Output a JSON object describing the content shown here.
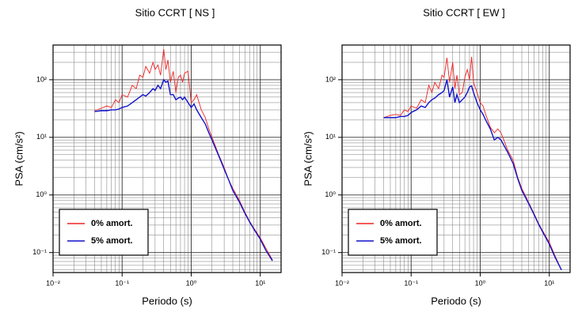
{
  "chart_data": [
    {
      "type": "line",
      "title": "Sitio CCRT [ NS ]",
      "xlabel": "Periodo (s)",
      "ylabel": "PSA (cm/s²)",
      "log_x": true,
      "log_y": true,
      "grid": true,
      "legend": "lower left",
      "xlim": [
        0.01,
        20
      ],
      "ylim": [
        0.045,
        400
      ],
      "xticks": [
        {
          "value": 0.01,
          "label": "10⁻²"
        },
        {
          "value": 0.1,
          "label": "10⁻¹"
        },
        {
          "value": 1,
          "label": "10⁰"
        },
        {
          "value": 10,
          "label": "10¹"
        }
      ],
      "yticks": [
        {
          "value": 0.1,
          "label": "10⁻¹"
        },
        {
          "value": 1,
          "label": "10⁰"
        },
        {
          "value": 10,
          "label": "10¹"
        },
        {
          "value": 100,
          "label": "10²"
        }
      ],
      "x": [
        0.04,
        0.05,
        0.06,
        0.07,
        0.08,
        0.09,
        0.1,
        0.12,
        0.14,
        0.16,
        0.18,
        0.2,
        0.22,
        0.25,
        0.28,
        0.3,
        0.33,
        0.36,
        0.4,
        0.43,
        0.46,
        0.5,
        0.55,
        0.6,
        0.65,
        0.7,
        0.75,
        0.8,
        0.9,
        1.0,
        1.1,
        1.2,
        1.4,
        1.6,
        1.8,
        2.0,
        2.5,
        3,
        3.5,
        4,
        5,
        6,
        7,
        8,
        10,
        12,
        15
      ],
      "series": [
        {
          "name": "0% amort.",
          "color": "#ee2222",
          "values": [
            29,
            32,
            35,
            33,
            45,
            40,
            55,
            50,
            80,
            70,
            120,
            110,
            170,
            130,
            200,
            150,
            180,
            120,
            340,
            150,
            220,
            90,
            140,
            60,
            110,
            120,
            90,
            130,
            140,
            40,
            45,
            55,
            30,
            22,
            14,
            10,
            5,
            3,
            1.8,
            1.3,
            0.8,
            0.5,
            0.35,
            0.27,
            0.18,
            0.12,
            0.075
          ]
        },
        {
          "name": "5% amort.",
          "color": "#1111cc",
          "values": [
            28,
            29,
            29,
            30,
            30,
            31,
            33,
            35,
            40,
            45,
            50,
            55,
            52,
            60,
            70,
            65,
            80,
            70,
            100,
            90,
            95,
            55,
            55,
            45,
            48,
            50,
            45,
            50,
            40,
            33,
            38,
            30,
            22,
            17,
            12,
            9,
            4.8,
            2.8,
            1.8,
            1.2,
            0.75,
            0.48,
            0.34,
            0.26,
            0.17,
            0.11,
            0.072
          ]
        }
      ]
    },
    {
      "type": "line",
      "title": "Sitio CCRT [ EW ]",
      "xlabel": "Periodo (s)",
      "ylabel": "PSA (cm/s²)",
      "log_x": true,
      "log_y": true,
      "grid": true,
      "legend": "lower left",
      "xlim": [
        0.01,
        20
      ],
      "ylim": [
        0.045,
        400
      ],
      "xticks": [
        {
          "value": 0.01,
          "label": "10⁻²"
        },
        {
          "value": 0.1,
          "label": "10⁻¹"
        },
        {
          "value": 1,
          "label": "10⁰"
        },
        {
          "value": 10,
          "label": "10¹"
        }
      ],
      "yticks": [
        {
          "value": 0.1,
          "label": "10⁻¹"
        },
        {
          "value": 1,
          "label": "10⁰"
        },
        {
          "value": 10,
          "label": "10¹"
        },
        {
          "value": 100,
          "label": "10²"
        }
      ],
      "x": [
        0.04,
        0.05,
        0.06,
        0.07,
        0.08,
        0.09,
        0.1,
        0.12,
        0.14,
        0.16,
        0.18,
        0.2,
        0.22,
        0.25,
        0.28,
        0.3,
        0.33,
        0.36,
        0.4,
        0.43,
        0.46,
        0.5,
        0.55,
        0.6,
        0.65,
        0.7,
        0.75,
        0.8,
        0.9,
        1.0,
        1.1,
        1.2,
        1.4,
        1.6,
        1.8,
        2.0,
        2.5,
        3,
        3.5,
        4,
        5,
        6,
        7,
        8,
        10,
        12,
        15
      ],
      "series": [
        {
          "name": "0% amort.",
          "color": "#ee2222",
          "values": [
            22,
            24,
            25,
            24,
            30,
            28,
            35,
            32,
            45,
            40,
            80,
            60,
            90,
            70,
            120,
            110,
            240,
            90,
            200,
            70,
            120,
            55,
            60,
            110,
            150,
            100,
            250,
            90,
            60,
            40,
            35,
            25,
            15,
            12,
            14,
            12,
            6,
            4,
            2,
            1.3,
            0.75,
            0.48,
            0.32,
            0.24,
            0.15,
            0.09,
            0.05
          ]
        },
        {
          "name": "5% amort.",
          "color": "#1111cc",
          "values": [
            22,
            22,
            22,
            23,
            23,
            24,
            27,
            30,
            35,
            33,
            40,
            45,
            48,
            55,
            60,
            65,
            100,
            50,
            75,
            40,
            55,
            40,
            45,
            50,
            60,
            75,
            78,
            60,
            40,
            30,
            25,
            20,
            14,
            9,
            10,
            9,
            5.5,
            3.5,
            1.9,
            1.2,
            0.72,
            0.46,
            0.31,
            0.23,
            0.14,
            0.085,
            0.05
          ]
        }
      ]
    }
  ]
}
